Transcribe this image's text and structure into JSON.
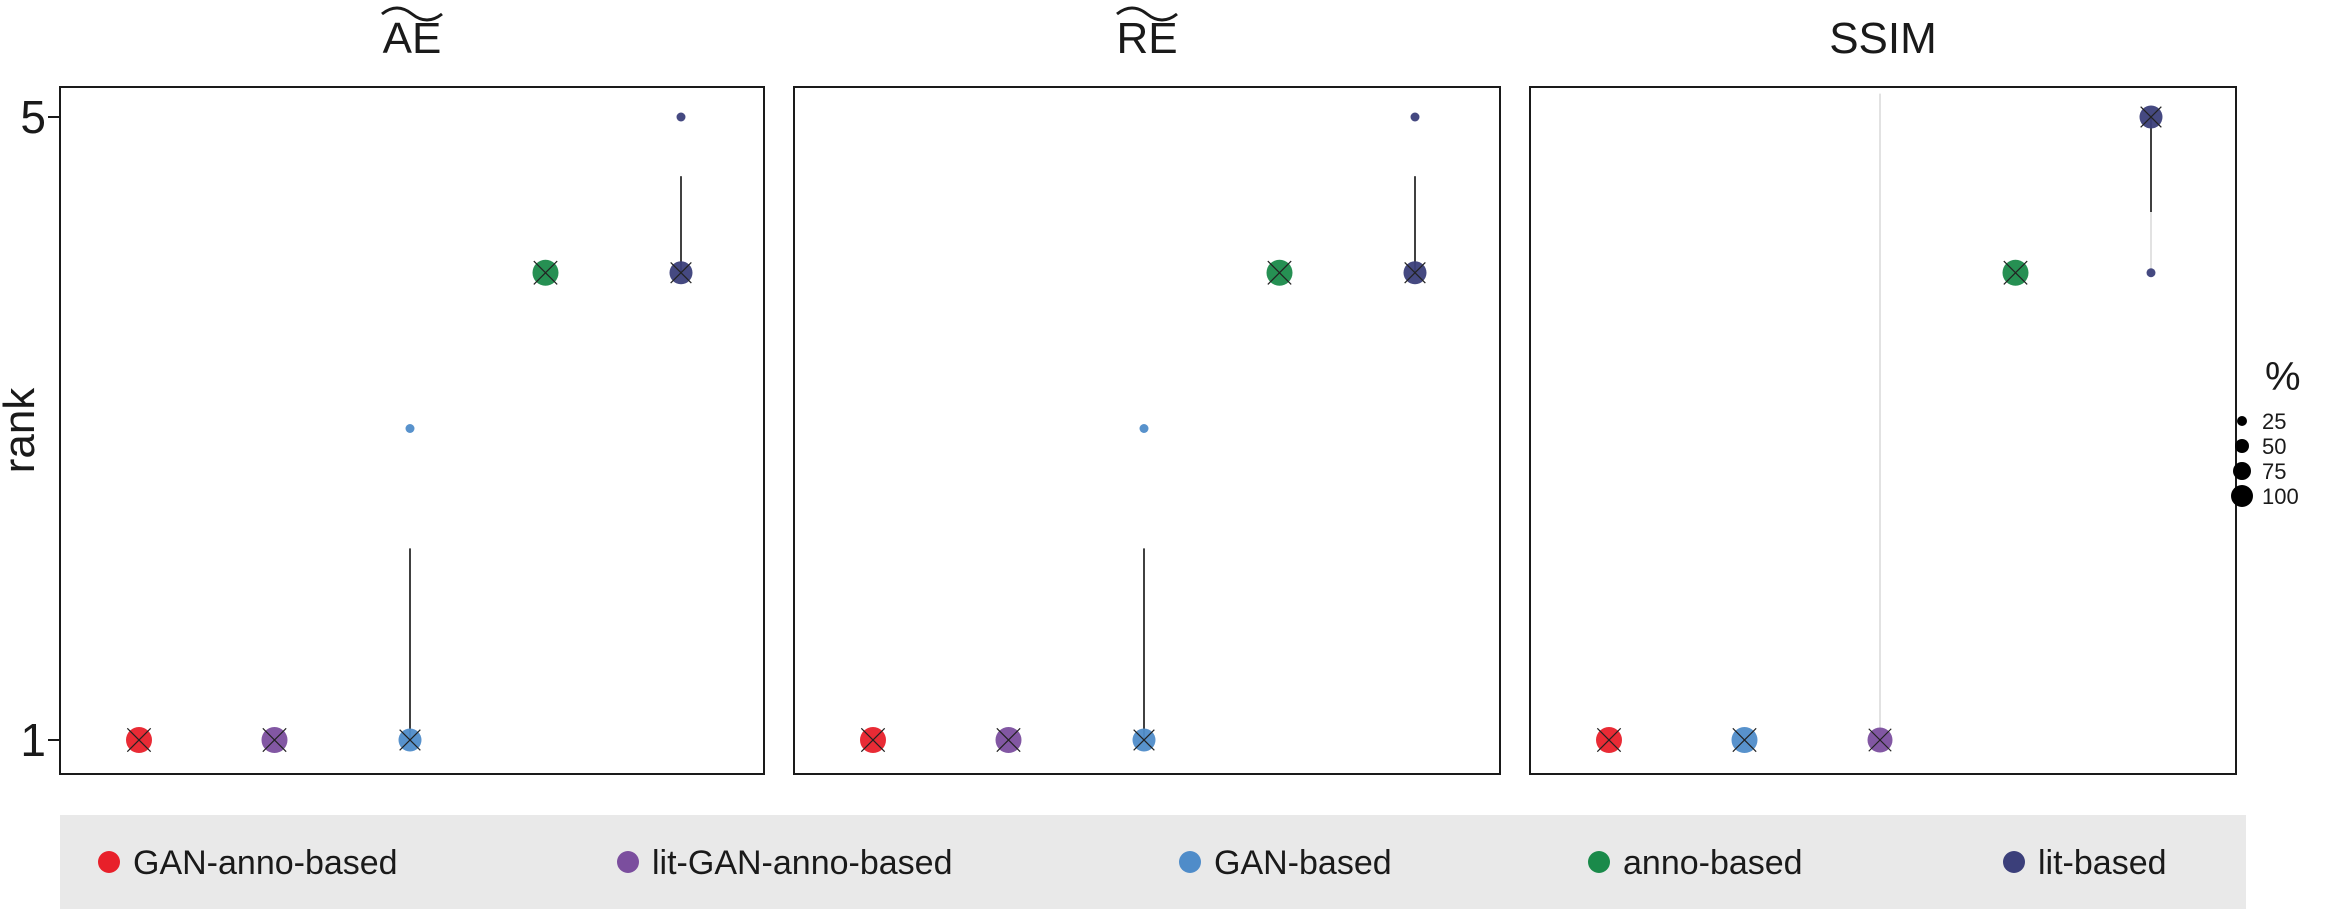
{
  "chart_data": [
    {
      "type": "scatter",
      "title": "AE",
      "title_accent": "tilde",
      "ylabel": "rank",
      "ylim": [
        0.8,
        5.2
      ],
      "yticks": [
        "1",
        "5"
      ],
      "categories": [
        "GAN-anno-based",
        "lit-GAN-anno-based",
        "GAN-based",
        "anno-based",
        "lit-based"
      ],
      "points": [
        {
          "method": "GAN-anno-based",
          "rank": 1,
          "percent": 100
        },
        {
          "method": "lit-GAN-anno-based",
          "rank": 1,
          "percent": 100
        },
        {
          "method": "GAN-based",
          "rank": 1,
          "percent": 85
        },
        {
          "method": "GAN-based",
          "rank": 3,
          "percent": 15
        },
        {
          "method": "anno-based",
          "rank": 4,
          "percent": 100
        },
        {
          "method": "lit-based",
          "rank": 4,
          "percent": 85
        },
        {
          "method": "lit-based",
          "rank": 5,
          "percent": 15
        }
      ],
      "segments": [
        {
          "method": "GAN-based",
          "from": 1,
          "to": 2.23,
          "style": "dark"
        },
        {
          "method": "lit-based",
          "from": 4,
          "to": 4.62,
          "style": "dark"
        }
      ]
    },
    {
      "type": "scatter",
      "title": "RE",
      "title_accent": "tilde",
      "ylim": [
        0.8,
        5.2
      ],
      "categories": [
        "GAN-anno-based",
        "lit-GAN-anno-based",
        "GAN-based",
        "anno-based",
        "lit-based"
      ],
      "points": [
        {
          "method": "GAN-anno-based",
          "rank": 1,
          "percent": 100
        },
        {
          "method": "lit-GAN-anno-based",
          "rank": 1,
          "percent": 100
        },
        {
          "method": "GAN-based",
          "rank": 1,
          "percent": 85
        },
        {
          "method": "GAN-based",
          "rank": 3,
          "percent": 15
        },
        {
          "method": "anno-based",
          "rank": 4,
          "percent": 100
        },
        {
          "method": "lit-based",
          "rank": 4,
          "percent": 85
        },
        {
          "method": "lit-based",
          "rank": 5,
          "percent": 15
        }
      ],
      "segments": [
        {
          "method": "GAN-based",
          "from": 1,
          "to": 2.23,
          "style": "dark"
        },
        {
          "method": "lit-based",
          "from": 4,
          "to": 4.62,
          "style": "dark"
        }
      ]
    },
    {
      "type": "scatter",
      "title": "SSIM",
      "title_accent": "",
      "ylim": [
        0.8,
        5.2
      ],
      "categories": [
        "GAN-anno-based",
        "GAN-based",
        "lit-GAN-anno-based",
        "anno-based",
        "lit-based"
      ],
      "points": [
        {
          "method": "GAN-anno-based",
          "rank": 1,
          "percent": 100
        },
        {
          "method": "GAN-based",
          "rank": 1,
          "percent": 100
        },
        {
          "method": "lit-GAN-anno-based",
          "rank": 1,
          "percent": 95
        },
        {
          "method": "anno-based",
          "rank": 4,
          "percent": 100
        },
        {
          "method": "lit-based",
          "rank": 5,
          "percent": 85
        },
        {
          "method": "lit-based",
          "rank": 4,
          "percent": 15
        }
      ],
      "segments": [
        {
          "method": "lit-GAN-anno-based",
          "from": 1,
          "to": 5.15,
          "style": "light"
        },
        {
          "method": "lit-based",
          "from": 5,
          "to": 4.39,
          "style": "dark"
        },
        {
          "method": "lit-based",
          "from": 4.39,
          "to": 4,
          "style": "light"
        }
      ]
    }
  ],
  "colors": {
    "GAN-anno-based": "#E8202A",
    "lit-GAN-anno-based": "#7B4E9E",
    "GAN-based": "#4F8CC9",
    "anno-based": "#1A8A4A",
    "lit-based": "#3B3F7A"
  },
  "legend": {
    "items": [
      "GAN-anno-based",
      "lit-GAN-anno-based",
      "GAN-based",
      "anno-based",
      "lit-based"
    ],
    "placement": "bottom"
  },
  "size_legend": {
    "title": "%",
    "items": [
      "25",
      "50",
      "75",
      "100"
    ],
    "values": [
      25,
      50,
      75,
      100
    ],
    "placement": "right"
  }
}
